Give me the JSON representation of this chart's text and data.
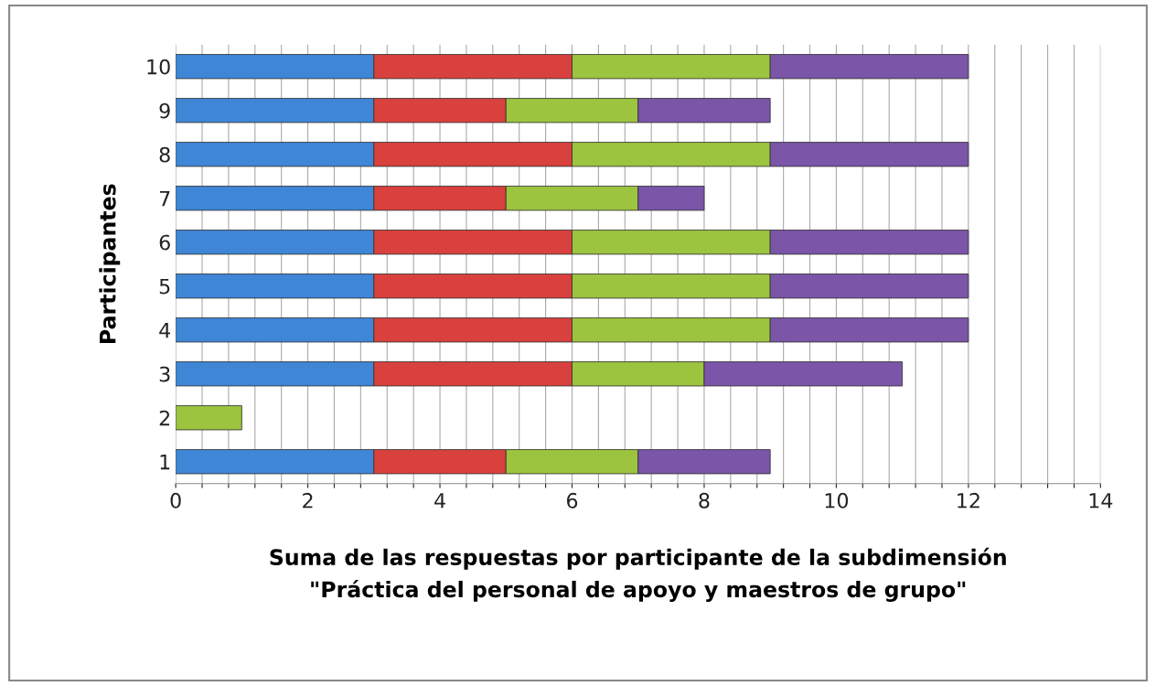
{
  "chart_data": {
    "type": "bar",
    "orientation": "horizontal",
    "stacked": true,
    "xlabel": "Suma de las respuestas por participante de la subdimensión\n\"Práctica del personal de apoyo y maestros de grupo\"",
    "ylabel": "Participantes",
    "categories": [
      "10",
      "9",
      "8",
      "7",
      "6",
      "5",
      "4",
      "3",
      "2",
      "1"
    ],
    "series": [
      {
        "color": "#3f86d6",
        "values": [
          3,
          3,
          3,
          3,
          3,
          3,
          3,
          3,
          null,
          3
        ]
      },
      {
        "color": "#d9413e",
        "values": [
          3,
          2,
          3,
          2,
          3,
          3,
          3,
          3,
          null,
          2
        ]
      },
      {
        "color": "#9cc43f",
        "values": [
          3,
          2,
          3,
          2,
          3,
          3,
          3,
          2,
          1,
          2
        ]
      },
      {
        "color": "#7a55a8",
        "values": [
          3,
          2,
          3,
          1,
          3,
          3,
          3,
          3,
          null,
          2
        ]
      }
    ],
    "xlim": [
      0,
      14
    ],
    "xticks": [
      0,
      {
        "value": 0.4,
        "label": null
      },
      {
        "value": 0.8,
        "label": null
      },
      {
        "value": 1.2,
        "label": null
      },
      {
        "value": 1.6,
        "label": null
      },
      2,
      {
        "value": 2.4,
        "label": null
      },
      {
        "value": 2.8,
        "label": null
      },
      {
        "value": 3.2,
        "label": null
      },
      {
        "value": 3.6,
        "label": null
      },
      4,
      {
        "value": 4.4,
        "label": null
      },
      {
        "value": 4.8,
        "label": null
      },
      {
        "value": 5.2,
        "label": null
      },
      {
        "value": 5.6,
        "label": null
      },
      6,
      {
        "value": 6.4,
        "label": null
      },
      {
        "value": 6.8,
        "label": null
      },
      {
        "value": 7.2,
        "label": null
      },
      {
        "value": 7.6,
        "label": null
      },
      8,
      {
        "value": 8.4,
        "label": null
      },
      {
        "value": 8.8,
        "label": null
      },
      {
        "value": 9.2,
        "label": null
      },
      {
        "value": 9.6,
        "label": null
      },
      10,
      {
        "value": 10.4,
        "label": null
      },
      {
        "value": 10.8,
        "label": null
      },
      {
        "value": 11.2,
        "label": null
      },
      {
        "value": 11.6,
        "label": null
      },
      12,
      {
        "value": 12.4,
        "label": null
      },
      {
        "value": 12.8,
        "label": null
      },
      {
        "value": 13.2,
        "label": null
      },
      {
        "value": 13.6,
        "label": null
      },
      14
    ],
    "grid": "x",
    "legend": false
  }
}
